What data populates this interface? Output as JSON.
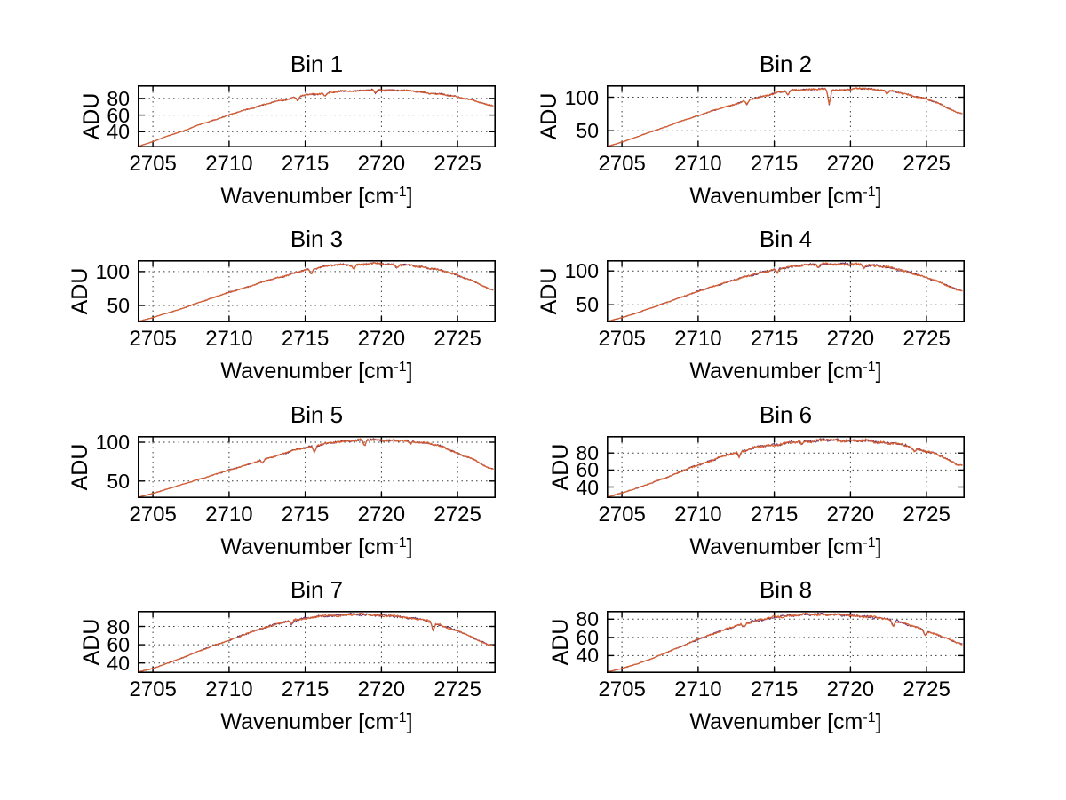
{
  "page": {
    "background": "#ffffff"
  },
  "labels": {
    "ylabel": "ADU",
    "xlabel_pre": "Wavenumber [cm",
    "xlabel_sup": "-1",
    "xlabel_post": "]"
  },
  "colors": {
    "trace_main": "#d9602f",
    "trace_under": "#703468",
    "axis": "#000000",
    "grid": "#3c3c3c"
  },
  "chart_data": [
    {
      "type": "line",
      "title": "Bin 1",
      "xlabel": "Wavenumber [cm^-1]",
      "ylabel": "ADU",
      "xlim": [
        2704,
        2727.5
      ],
      "ylim": [
        21,
        96
      ],
      "xticks": [
        2705,
        2710,
        2715,
        2720,
        2725
      ],
      "yticks": [
        40,
        60,
        80
      ],
      "grid": true,
      "envelope_x": [
        2704,
        2705,
        2706,
        2707,
        2708,
        2709,
        2710,
        2711,
        2712,
        2713,
        2714,
        2715,
        2716,
        2717,
        2718,
        2719,
        2720,
        2721,
        2722,
        2723,
        2724,
        2725,
        2726,
        2727,
        2727.5
      ],
      "envelope_y": [
        22,
        28,
        35,
        41,
        48,
        54,
        60,
        66,
        71,
        76,
        80,
        84,
        86,
        88,
        89,
        90,
        90,
        90,
        89,
        87,
        85,
        82,
        78,
        72,
        71
      ],
      "spikes": [
        {
          "x": 2714.5,
          "dy": -5
        },
        {
          "x": 2716.3,
          "dy": -4
        },
        {
          "x": 2719.6,
          "dy": -4
        }
      ],
      "noise_amp": 1.3,
      "seed": 11,
      "series": [
        {
          "name": "trace-under",
          "color": "#703468"
        },
        {
          "name": "trace-main",
          "color": "#d9602f"
        }
      ]
    },
    {
      "type": "line",
      "title": "Bin 2",
      "xlabel": "Wavenumber [cm^-1]",
      "ylabel": "ADU",
      "xlim": [
        2704,
        2727.5
      ],
      "ylim": [
        25,
        118
      ],
      "xticks": [
        2705,
        2710,
        2715,
        2720,
        2725
      ],
      "yticks": [
        50,
        100
      ],
      "grid": true,
      "envelope_x": [
        2704,
        2705,
        2706,
        2707,
        2708,
        2709,
        2710,
        2711,
        2712,
        2713,
        2714,
        2715,
        2716,
        2717,
        2718,
        2719,
        2720,
        2721,
        2722,
        2723,
        2724,
        2725,
        2726,
        2727,
        2727.5
      ],
      "envelope_y": [
        26,
        33,
        41,
        49,
        57,
        65,
        73,
        80,
        87,
        94,
        100,
        106,
        110,
        112,
        112,
        111,
        112,
        113,
        111,
        108,
        103,
        97,
        89,
        77,
        75
      ],
      "spikes": [
        {
          "x": 2713.2,
          "dy": -6
        },
        {
          "x": 2715.9,
          "dy": -7
        },
        {
          "x": 2718.6,
          "dy": -23
        },
        {
          "x": 2722.4,
          "dy": -5
        }
      ],
      "noise_amp": 1.8,
      "seed": 22,
      "series": [
        {
          "name": "trace-under",
          "color": "#703468"
        },
        {
          "name": "trace-main",
          "color": "#d9602f"
        }
      ]
    },
    {
      "type": "line",
      "title": "Bin 3",
      "xlabel": "Wavenumber [cm^-1]",
      "ylabel": "ADU",
      "xlim": [
        2704,
        2727.5
      ],
      "ylim": [
        25,
        117
      ],
      "xticks": [
        2705,
        2710,
        2715,
        2720,
        2725
      ],
      "yticks": [
        50,
        100
      ],
      "grid": true,
      "envelope_x": [
        2704,
        2705,
        2706,
        2707,
        2708,
        2709,
        2710,
        2711,
        2712,
        2713,
        2714,
        2715,
        2716,
        2717,
        2718,
        2719,
        2720,
        2721,
        2722,
        2723,
        2724,
        2725,
        2726,
        2727,
        2727.5
      ],
      "envelope_y": [
        26,
        32,
        39,
        46,
        54,
        62,
        69,
        76,
        83,
        90,
        96,
        102,
        107,
        110,
        110,
        111,
        112,
        110,
        109,
        106,
        101,
        95,
        86,
        75,
        72
      ],
      "spikes": [
        {
          "x": 2715.4,
          "dy": -8
        },
        {
          "x": 2718.2,
          "dy": -6
        },
        {
          "x": 2721.0,
          "dy": -4
        }
      ],
      "noise_amp": 2.0,
      "seed": 33,
      "series": [
        {
          "name": "trace-under",
          "color": "#703468"
        },
        {
          "name": "trace-main",
          "color": "#d9602f"
        }
      ]
    },
    {
      "type": "line",
      "title": "Bin 4",
      "xlabel": "Wavenumber [cm^-1]",
      "ylabel": "ADU",
      "xlim": [
        2704,
        2727.5
      ],
      "ylim": [
        24,
        116
      ],
      "xticks": [
        2705,
        2710,
        2715,
        2720,
        2725
      ],
      "yticks": [
        50,
        100
      ],
      "grid": true,
      "envelope_x": [
        2704,
        2705,
        2706,
        2707,
        2708,
        2709,
        2710,
        2711,
        2712,
        2713,
        2714,
        2715,
        2716,
        2717,
        2718,
        2719,
        2720,
        2721,
        2722,
        2723,
        2724,
        2725,
        2726,
        2727,
        2727.5
      ],
      "envelope_y": [
        25,
        31,
        38,
        46,
        54,
        62,
        70,
        77,
        84,
        91,
        97,
        102,
        106,
        109,
        110,
        110,
        110,
        109,
        107,
        103,
        97,
        90,
        82,
        72,
        70
      ],
      "spikes": [
        {
          "x": 2715.2,
          "dy": -6
        },
        {
          "x": 2717.9,
          "dy": -5
        },
        {
          "x": 2720.9,
          "dy": -5
        }
      ],
      "noise_amp": 2.2,
      "seed": 44,
      "series": [
        {
          "name": "trace-under",
          "color": "#703468"
        },
        {
          "name": "trace-main",
          "color": "#d9602f"
        }
      ]
    },
    {
      "type": "line",
      "title": "Bin 5",
      "xlabel": "Wavenumber [cm^-1]",
      "ylabel": "ADU",
      "xlim": [
        2704,
        2727.5
      ],
      "ylim": [
        28,
        108
      ],
      "xticks": [
        2705,
        2710,
        2715,
        2720,
        2725
      ],
      "yticks": [
        50,
        100
      ],
      "grid": true,
      "envelope_x": [
        2704,
        2705,
        2706,
        2707,
        2708,
        2709,
        2710,
        2711,
        2712,
        2713,
        2714,
        2715,
        2716,
        2717,
        2718,
        2719,
        2720,
        2721,
        2722,
        2723,
        2724,
        2725,
        2726,
        2727,
        2727.5
      ],
      "envelope_y": [
        29,
        34,
        40,
        46,
        52,
        58,
        64,
        70,
        76,
        82,
        88,
        93,
        97,
        100,
        102,
        103,
        103,
        102,
        101,
        99,
        94,
        86,
        78,
        67,
        65
      ],
      "spikes": [
        {
          "x": 2712.2,
          "dy": -5
        },
        {
          "x": 2715.6,
          "dy": -9
        },
        {
          "x": 2718.9,
          "dy": -8
        },
        {
          "x": 2721.9,
          "dy": -4
        }
      ],
      "noise_amp": 1.8,
      "seed": 55,
      "series": [
        {
          "name": "trace-under",
          "color": "#703468"
        },
        {
          "name": "trace-main",
          "color": "#d9602f"
        }
      ]
    },
    {
      "type": "line",
      "title": "Bin 6",
      "xlabel": "Wavenumber [cm^-1]",
      "ylabel": "ADU",
      "xlim": [
        2704,
        2727.5
      ],
      "ylim": [
        27,
        100
      ],
      "xticks": [
        2705,
        2710,
        2715,
        2720,
        2725
      ],
      "yticks": [
        40,
        60,
        80
      ],
      "grid": true,
      "envelope_x": [
        2704,
        2705,
        2706,
        2707,
        2708,
        2709,
        2710,
        2711,
        2712,
        2713,
        2714,
        2715,
        2716,
        2717,
        2718,
        2719,
        2720,
        2721,
        2722,
        2723,
        2724,
        2725,
        2726,
        2727,
        2727.5
      ],
      "envelope_y": [
        28,
        33,
        39,
        45,
        52,
        59,
        66,
        72,
        78,
        83,
        87,
        90,
        92,
        94,
        95,
        95,
        95,
        94,
        93,
        91,
        87,
        82,
        76,
        67,
        65
      ],
      "spikes": [
        {
          "x": 2712.7,
          "dy": -6
        },
        {
          "x": 2716.8,
          "dy": -4
        },
        {
          "x": 2724.2,
          "dy": -5
        }
      ],
      "noise_amp": 2.2,
      "seed": 66,
      "series": [
        {
          "name": "trace-under",
          "color": "#703468"
        },
        {
          "name": "trace-main",
          "color": "#d9602f"
        }
      ]
    },
    {
      "type": "line",
      "title": "Bin 7",
      "xlabel": "Wavenumber [cm^-1]",
      "ylabel": "ADU",
      "xlim": [
        2704,
        2727.5
      ],
      "ylim": [
        29,
        97
      ],
      "xticks": [
        2705,
        2710,
        2715,
        2720,
        2725
      ],
      "yticks": [
        40,
        60,
        80
      ],
      "grid": true,
      "envelope_x": [
        2704,
        2705,
        2706,
        2707,
        2708,
        2709,
        2710,
        2711,
        2712,
        2713,
        2714,
        2715,
        2716,
        2717,
        2718,
        2719,
        2720,
        2721,
        2722,
        2723,
        2724,
        2725,
        2726,
        2727,
        2727.5
      ],
      "envelope_y": [
        30,
        34,
        40,
        46,
        53,
        59,
        65,
        71,
        77,
        82,
        86,
        89,
        91,
        92,
        93,
        93,
        92,
        91,
        89,
        86,
        81,
        75,
        68,
        60,
        58
      ],
      "spikes": [
        {
          "x": 2714.1,
          "dy": -4
        },
        {
          "x": 2723.4,
          "dy": -9
        }
      ],
      "noise_amp": 1.6,
      "seed": 77,
      "series": [
        {
          "name": "trace-under",
          "color": "#703468"
        },
        {
          "name": "trace-main",
          "color": "#d9602f"
        }
      ]
    },
    {
      "type": "line",
      "title": "Bin 8",
      "xlabel": "Wavenumber [cm^-1]",
      "ylabel": "ADU",
      "xlim": [
        2704,
        2727.5
      ],
      "ylim": [
        21,
        89
      ],
      "xticks": [
        2705,
        2710,
        2715,
        2720,
        2725
      ],
      "yticks": [
        40,
        60,
        80
      ],
      "grid": true,
      "envelope_x": [
        2704,
        2705,
        2706,
        2707,
        2708,
        2709,
        2710,
        2711,
        2712,
        2713,
        2714,
        2715,
        2716,
        2717,
        2718,
        2719,
        2720,
        2721,
        2722,
        2723,
        2724,
        2725,
        2726,
        2727,
        2727.5
      ],
      "envelope_y": [
        22,
        26,
        31,
        37,
        44,
        51,
        58,
        64,
        70,
        75,
        79,
        82,
        84,
        85,
        85,
        85,
        84,
        83,
        81,
        78,
        73,
        67,
        61,
        54,
        52
      ],
      "spikes": [
        {
          "x": 2713.0,
          "dy": -4
        },
        {
          "x": 2722.8,
          "dy": -6
        },
        {
          "x": 2724.9,
          "dy": -5
        }
      ],
      "noise_amp": 1.7,
      "seed": 88,
      "series": [
        {
          "name": "trace-under",
          "color": "#703468"
        },
        {
          "name": "trace-main",
          "color": "#d9602f"
        }
      ]
    }
  ]
}
